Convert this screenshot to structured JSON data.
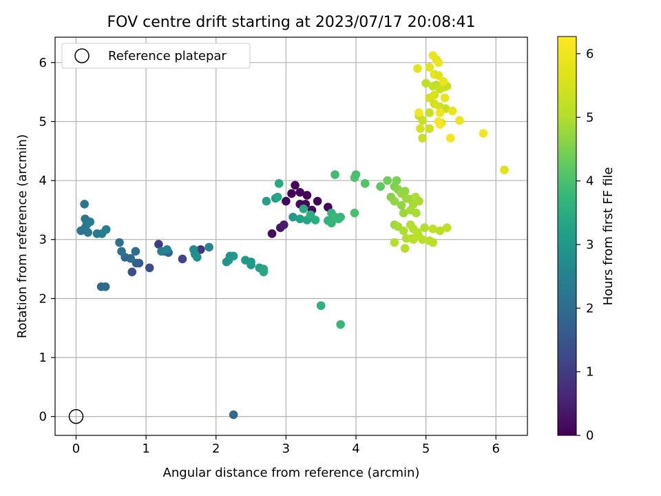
{
  "chart_data": {
    "type": "scatter",
    "title": "FOV centre drift starting at 2023/07/17 20:08:41",
    "xlabel": "Angular distance from reference (arcmin)",
    "ylabel": "Rotation from reference (arcmin)",
    "xlim": [
      -0.3,
      6.45
    ],
    "ylim": [
      -0.32,
      6.43
    ],
    "xticks": [
      "0",
      "1",
      "2",
      "3",
      "4",
      "5",
      "6"
    ],
    "yticks": [
      "0",
      "1",
      "2",
      "3",
      "4",
      "5",
      "6"
    ],
    "grid": true,
    "legend": {
      "position": "top-left",
      "entries": [
        "Reference platepar"
      ]
    },
    "reference_point": {
      "x": 0,
      "y": 0
    },
    "colorbar": {
      "label": "Hours from first FF file",
      "colormap": "viridis",
      "range": [
        0,
        6.27
      ],
      "ticks": [
        "0",
        "1",
        "2",
        "3",
        "4",
        "5",
        "6"
      ]
    },
    "points": [
      [
        2.8,
        3.1,
        0.2
      ],
      [
        2.92,
        3.2,
        0.35
      ],
      [
        2.97,
        3.25,
        0.45
      ],
      [
        3.0,
        3.65,
        0.1
      ],
      [
        3.08,
        3.78,
        0.05
      ],
      [
        3.13,
        3.92,
        0.1
      ],
      [
        3.2,
        3.8,
        0.15
      ],
      [
        3.2,
        3.6,
        0.2
      ],
      [
        3.3,
        3.75,
        0.05
      ],
      [
        3.28,
        3.6,
        0.1
      ],
      [
        3.37,
        3.5,
        0.15
      ],
      [
        3.45,
        3.65,
        0.1
      ],
      [
        3.6,
        3.55,
        0.05
      ],
      [
        1.18,
        2.92,
        1.0
      ],
      [
        1.52,
        2.67,
        1.2
      ],
      [
        1.78,
        2.83,
        0.9
      ],
      [
        0.8,
        2.45,
        1.35
      ],
      [
        1.05,
        2.52,
        1.4
      ],
      [
        0.9,
        2.6,
        1.5
      ],
      [
        1.27,
        2.8,
        1.6
      ],
      [
        1.32,
        2.78,
        1.7
      ],
      [
        0.86,
        2.6,
        1.7
      ],
      [
        0.7,
        2.7,
        1.9
      ],
      [
        0.78,
        2.68,
        1.95
      ],
      [
        0.85,
        2.8,
        2.0
      ],
      [
        0.36,
        2.2,
        1.9
      ],
      [
        0.42,
        2.2,
        1.95
      ],
      [
        2.25,
        0.03,
        1.9
      ],
      [
        0.62,
        2.95,
        2.1
      ],
      [
        0.65,
        2.8,
        2.1
      ],
      [
        0.07,
        3.15,
        2.15
      ],
      [
        0.12,
        3.6,
        2.25
      ],
      [
        0.13,
        3.35,
        2.2
      ],
      [
        0.18,
        3.3,
        2.3
      ],
      [
        0.2,
        3.3,
        2.35
      ],
      [
        0.15,
        3.25,
        2.3
      ],
      [
        0.17,
        3.12,
        2.25
      ],
      [
        0.13,
        3.2,
        2.3
      ],
      [
        0.3,
        3.1,
        2.3
      ],
      [
        0.37,
        3.1,
        2.35
      ],
      [
        0.43,
        3.17,
        2.4
      ],
      [
        1.22,
        2.8,
        2.45
      ],
      [
        1.3,
        2.83,
        2.5
      ],
      [
        1.9,
        2.87,
        2.6
      ],
      [
        1.68,
        2.83,
        2.7
      ],
      [
        1.7,
        2.75,
        2.8
      ],
      [
        1.73,
        2.7,
        2.85
      ],
      [
        2.15,
        2.62,
        2.9
      ],
      [
        2.18,
        2.65,
        2.9
      ],
      [
        2.2,
        2.72,
        2.95
      ],
      [
        2.25,
        2.72,
        3.0
      ],
      [
        2.42,
        2.65,
        3.1
      ],
      [
        2.5,
        2.62,
        3.0
      ],
      [
        2.5,
        2.57,
        3.1
      ],
      [
        2.62,
        2.52,
        3.2
      ],
      [
        2.68,
        2.5,
        3.3
      ],
      [
        2.68,
        2.45,
        3.35
      ],
      [
        2.72,
        3.65,
        3.2
      ],
      [
        2.85,
        3.7,
        3.1
      ],
      [
        2.88,
        3.72,
        3.3
      ],
      [
        2.9,
        3.95,
        3.4
      ],
      [
        3.1,
        3.38,
        3.1
      ],
      [
        3.2,
        3.35,
        3.2
      ],
      [
        3.25,
        3.52,
        3.4
      ],
      [
        3.3,
        3.33,
        3.3
      ],
      [
        3.35,
        3.42,
        3.5
      ],
      [
        3.42,
        3.33,
        3.5
      ],
      [
        3.5,
        1.88,
        3.6
      ],
      [
        3.6,
        3.32,
        3.6
      ],
      [
        3.65,
        3.45,
        3.7
      ],
      [
        3.65,
        3.28,
        3.7
      ],
      [
        3.7,
        3.38,
        3.8
      ],
      [
        3.75,
        3.35,
        3.8
      ],
      [
        3.78,
        3.38,
        3.8
      ],
      [
        3.78,
        1.56,
        3.8
      ],
      [
        3.7,
        4.1,
        3.9
      ],
      [
        3.98,
        3.45,
        4.0
      ],
      [
        3.98,
        4.05,
        4.05
      ],
      [
        4.0,
        4.1,
        4.0
      ],
      [
        4.13,
        3.95,
        4.1
      ],
      [
        4.35,
        3.9,
        4.2
      ],
      [
        4.45,
        4.0,
        4.4
      ],
      [
        4.55,
        3.9,
        4.5
      ],
      [
        4.58,
        4.0,
        4.5
      ],
      [
        4.6,
        3.85,
        4.6
      ],
      [
        4.5,
        3.72,
        4.6
      ],
      [
        4.55,
        3.65,
        4.7
      ],
      [
        4.65,
        3.58,
        4.7
      ],
      [
        4.65,
        3.78,
        4.75
      ],
      [
        4.7,
        3.82,
        4.7
      ],
      [
        4.72,
        3.7,
        4.8
      ],
      [
        4.78,
        3.68,
        4.8
      ],
      [
        4.82,
        3.6,
        4.85
      ],
      [
        4.68,
        3.45,
        4.8
      ],
      [
        4.78,
        3.5,
        4.9
      ],
      [
        4.85,
        3.72,
        4.95
      ],
      [
        4.9,
        3.65,
        4.9
      ],
      [
        4.86,
        3.45,
        4.9
      ],
      [
        4.55,
        3.25,
        4.8
      ],
      [
        4.6,
        3.22,
        4.9
      ],
      [
        4.68,
        3.15,
        4.95
      ],
      [
        4.72,
        3.02,
        5.0
      ],
      [
        4.78,
        3.25,
        5.0
      ],
      [
        4.8,
        3.02,
        5.0
      ],
      [
        4.82,
        3.18,
        5.0
      ],
      [
        4.88,
        3.12,
        5.1
      ],
      [
        4.9,
        3.05,
        5.1
      ],
      [
        4.95,
        3.0,
        5.1
      ],
      [
        4.98,
        3.2,
        5.0
      ],
      [
        5.05,
        2.98,
        5.1
      ],
      [
        5.1,
        2.95,
        5.1
      ],
      [
        5.1,
        3.18,
        5.2
      ],
      [
        5.2,
        3.15,
        5.1
      ],
      [
        5.3,
        3.2,
        5.2
      ],
      [
        4.55,
        2.95,
        5.0
      ],
      [
        4.7,
        2.85,
        5.0
      ],
      [
        4.82,
        3.0,
        5.1
      ],
      [
        4.9,
        5.1,
        5.2
      ],
      [
        4.95,
        4.72,
        5.3
      ],
      [
        4.95,
        5.02,
        5.3
      ],
      [
        5.0,
        5.65,
        5.2
      ],
      [
        5.05,
        5.15,
        5.3
      ],
      [
        5.1,
        5.6,
        5.3
      ],
      [
        5.15,
        5.62,
        5.2
      ],
      [
        5.2,
        5.55,
        5.3
      ],
      [
        5.25,
        5.58,
        5.4
      ],
      [
        5.3,
        5.6,
        5.3
      ],
      [
        5.28,
        5.22,
        5.3
      ],
      [
        5.2,
        5.25,
        5.4
      ],
      [
        5.05,
        4.88,
        5.45
      ],
      [
        5.12,
        5.3,
        5.5
      ],
      [
        5.05,
        5.4,
        5.5
      ],
      [
        5.12,
        5.45,
        5.55
      ],
      [
        5.22,
        4.98,
        5.5
      ],
      [
        4.92,
        4.88,
        5.5
      ],
      [
        4.88,
        5.9,
        5.8
      ],
      [
        5.05,
        5.92,
        5.8
      ],
      [
        5.1,
        6.12,
        5.9
      ],
      [
        5.15,
        6.05,
        5.85
      ],
      [
        5.18,
        6.0,
        5.9
      ],
      [
        5.12,
        5.8,
        5.8
      ],
      [
        5.18,
        5.78,
        5.75
      ],
      [
        5.25,
        5.68,
        5.9
      ],
      [
        5.27,
        5.4,
        5.85
      ],
      [
        5.38,
        5.18,
        5.9
      ],
      [
        5.48,
        5.02,
        5.95
      ],
      [
        6.12,
        4.18,
        5.7
      ],
      [
        5.82,
        4.8,
        6.1
      ],
      [
        5.35,
        4.72,
        6.1
      ],
      [
        5.2,
        5.15,
        6.0
      ],
      [
        5.18,
        5.0,
        6.1
      ],
      [
        5.2,
        4.95,
        6.15
      ],
      [
        4.9,
        5.15,
        6.1
      ]
    ]
  }
}
